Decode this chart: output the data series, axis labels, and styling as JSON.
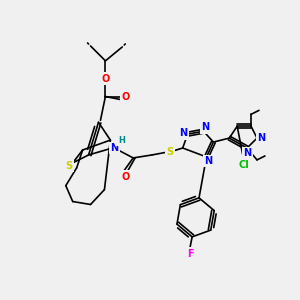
{
  "bg_color": "#f0f0f0",
  "atom_colors": {
    "O": "#ff0000",
    "N": "#0000ff",
    "S": "#cccc00",
    "F": "#ff00ff",
    "Cl": "#00bb00",
    "C": "#000000",
    "H": "#008888"
  },
  "figsize": [
    3.0,
    3.0
  ],
  "dpi": 100
}
